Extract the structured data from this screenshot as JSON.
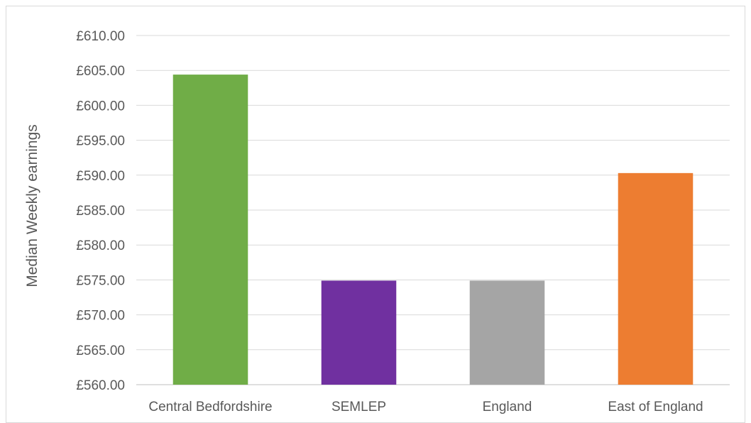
{
  "chart_data": {
    "type": "bar",
    "categories": [
      "Central Bedfordshire",
      "SEMLEP",
      "England",
      "East of England"
    ],
    "values": [
      604.4,
      574.9,
      574.9,
      590.3
    ],
    "colors": [
      "#70AD47",
      "#7030A0",
      "#A5A5A5",
      "#ED7D31"
    ],
    "ylabel": "Median Weekly earnings",
    "ylim": [
      560,
      610
    ],
    "ytick_step": 5,
    "ytick_labels": [
      "£560.00",
      "£565.00",
      "£570.00",
      "£575.00",
      "£580.00",
      "£585.00",
      "£590.00",
      "£595.00",
      "£600.00",
      "£605.00",
      "£610.00"
    ],
    "grid": true,
    "legend": "none"
  }
}
